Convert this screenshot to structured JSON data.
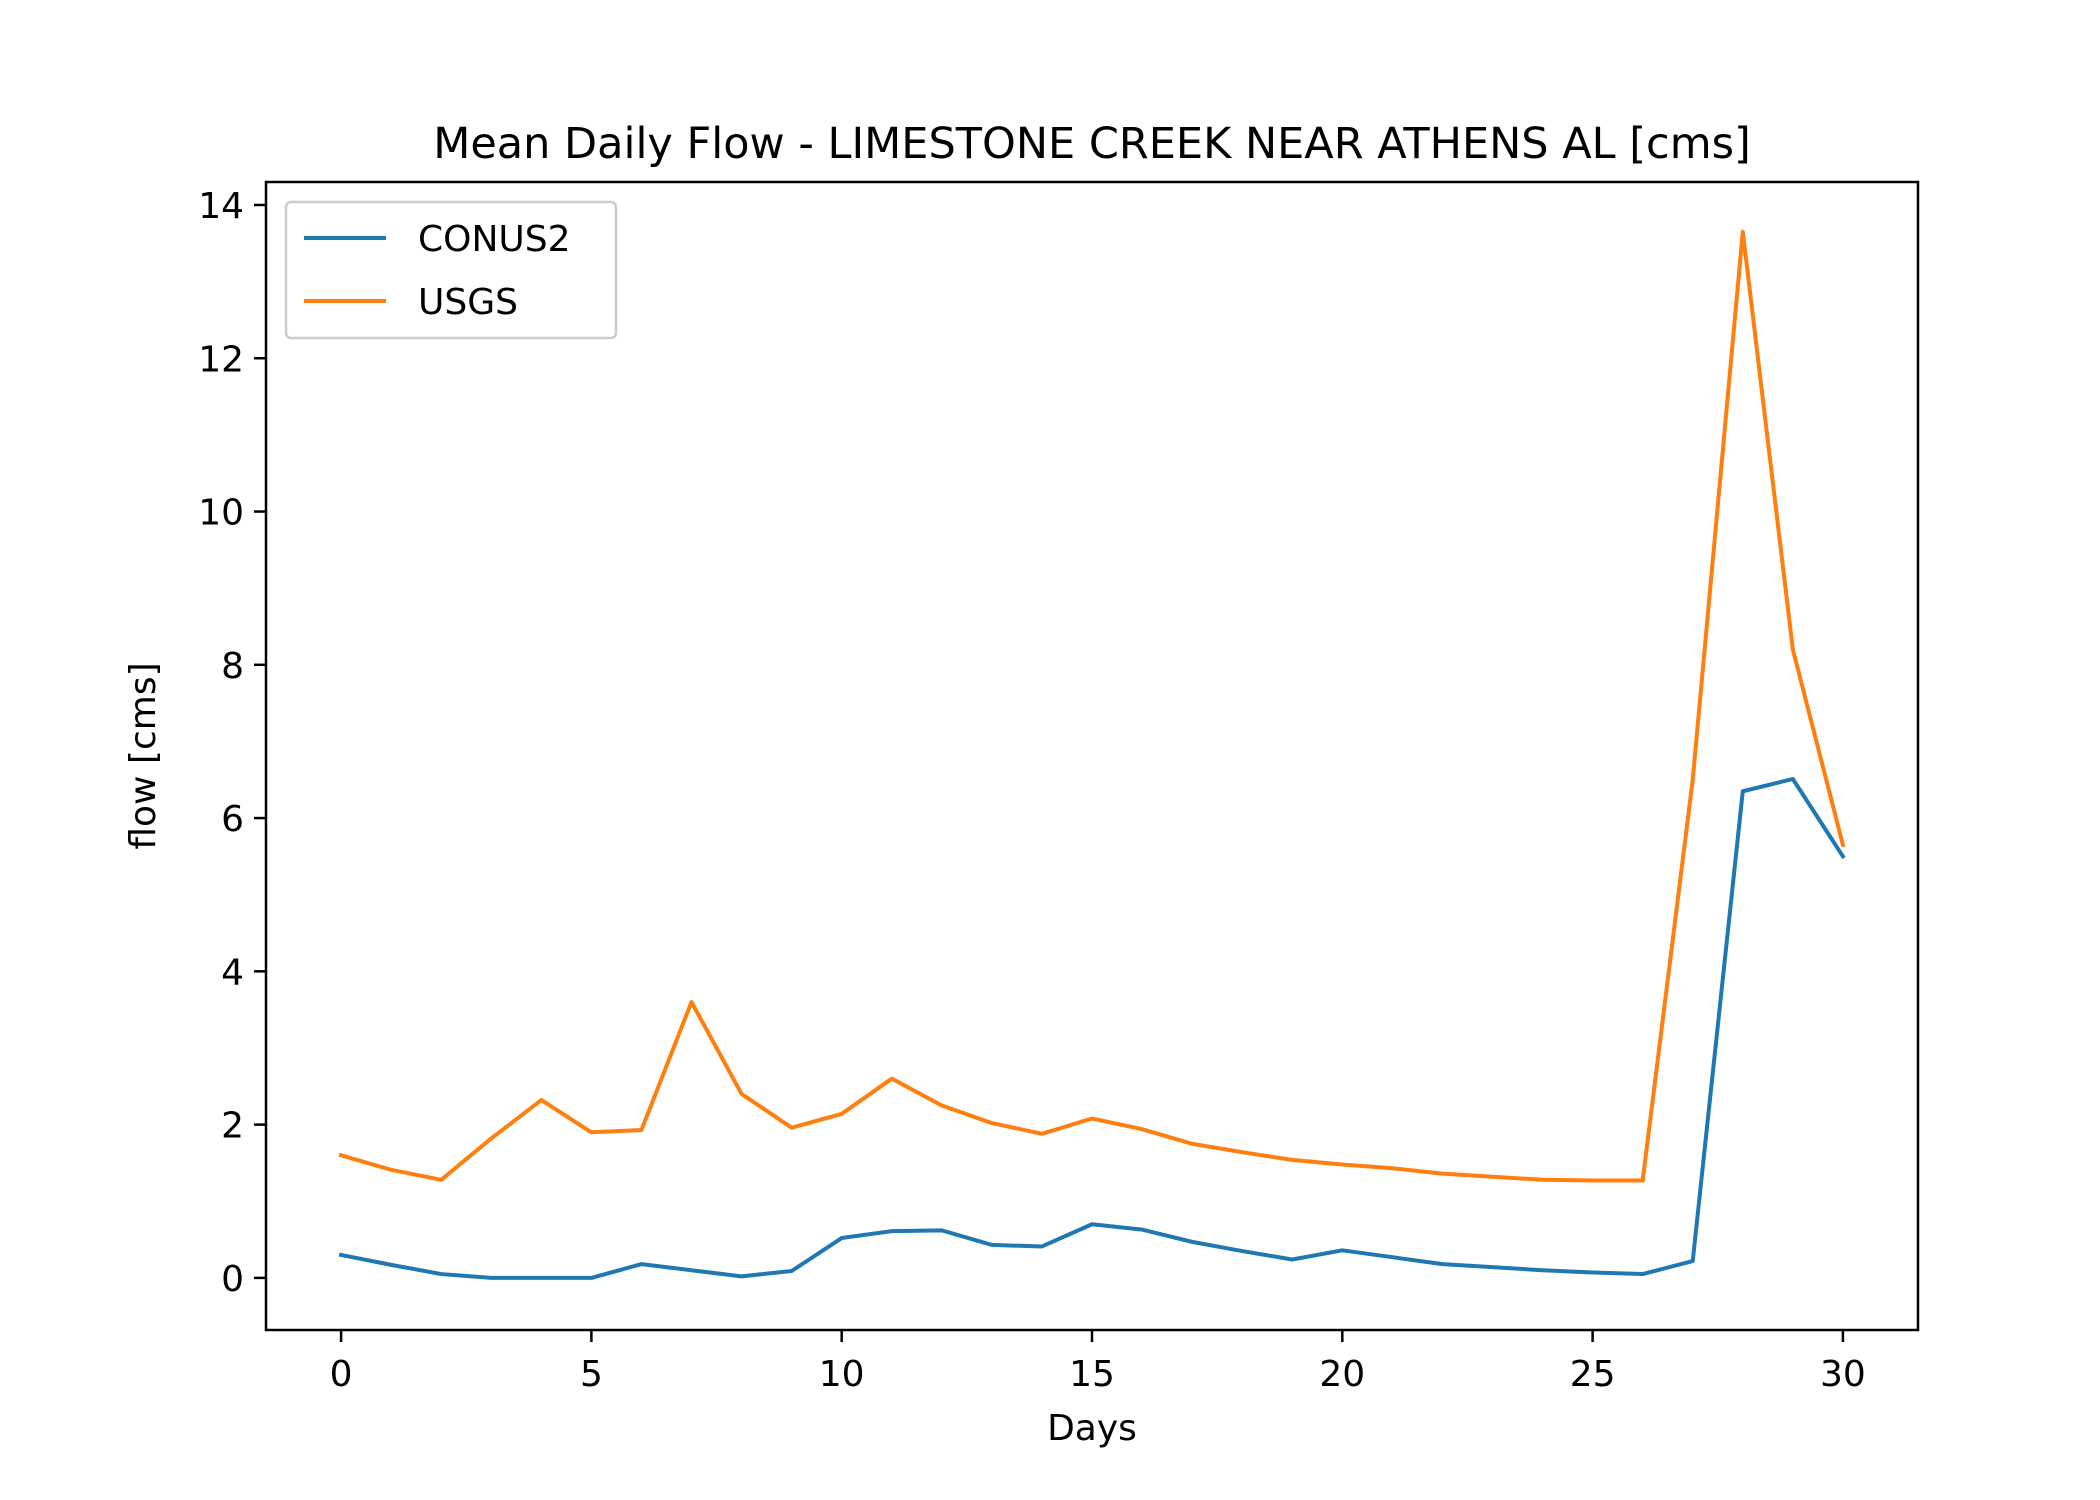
{
  "chart_data": {
    "type": "line",
    "title": "Mean Daily Flow - LIMESTONE CREEK NEAR ATHENS AL [cms]",
    "xlabel": "Days",
    "ylabel": "flow [cms]",
    "xlim": [
      -1.5,
      31.5
    ],
    "ylim": [
      -0.68,
      14.3
    ],
    "xticks": [
      0,
      5,
      10,
      15,
      20,
      25,
      30
    ],
    "yticks": [
      0,
      2,
      4,
      6,
      8,
      10,
      12,
      14
    ],
    "grid": false,
    "legend_position": "upper left",
    "x": [
      0,
      1,
      2,
      3,
      4,
      5,
      6,
      7,
      8,
      9,
      10,
      11,
      12,
      13,
      14,
      15,
      16,
      17,
      18,
      19,
      20,
      21,
      22,
      23,
      24,
      25,
      26,
      27,
      28,
      29,
      30
    ],
    "series": [
      {
        "name": "CONUS2",
        "color": "#1f77b4",
        "values": [
          0.3,
          0.17,
          0.05,
          0.0,
          0.0,
          0.0,
          0.18,
          0.1,
          0.02,
          0.09,
          0.52,
          0.61,
          0.62,
          0.43,
          0.41,
          0.7,
          0.63,
          0.47,
          0.35,
          0.24,
          0.36,
          0.27,
          0.18,
          0.14,
          0.1,
          0.07,
          0.05,
          0.22,
          6.35,
          6.51,
          5.5
        ]
      },
      {
        "name": "USGS",
        "color": "#ff7f0e",
        "values": [
          1.6,
          1.41,
          1.28,
          1.82,
          2.32,
          1.9,
          1.93,
          3.6,
          2.4,
          1.96,
          2.14,
          2.6,
          2.25,
          2.02,
          1.88,
          2.08,
          1.94,
          1.75,
          1.64,
          1.54,
          1.48,
          1.43,
          1.36,
          1.32,
          1.28,
          1.27,
          1.27,
          6.5,
          13.65,
          8.2,
          5.65
        ]
      }
    ]
  }
}
